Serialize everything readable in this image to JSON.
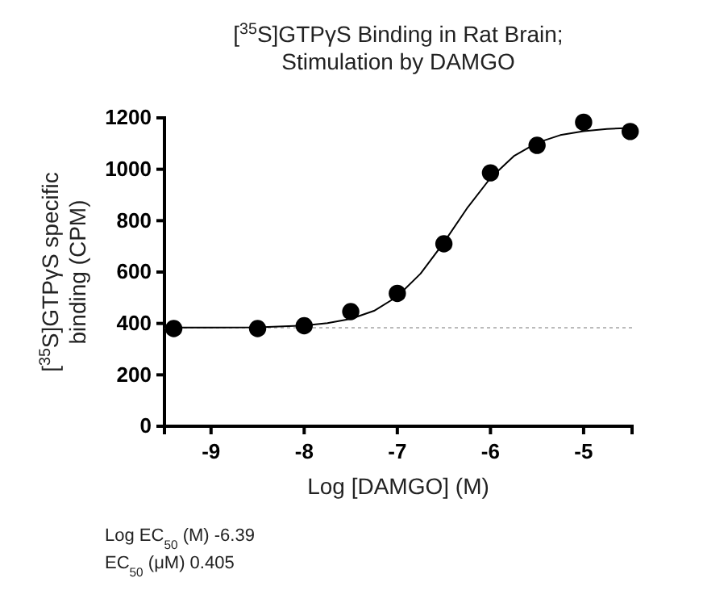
{
  "chart_data": {
    "type": "scatter",
    "title": "[$^{35}$S]GTPγS Binding in Rat Brain;\nStimulation by DAMGO",
    "xlabel": "Log [DAMGO] (M)",
    "ylabel": "[$^{35}$S]GTPγS specific\nbinding (CPM)",
    "xlim": [
      -9.5,
      -4.48
    ],
    "xticks": [
      -9,
      -8,
      -7,
      -6,
      -5
    ],
    "ylim": [
      0,
      1200
    ],
    "yticks": [
      0,
      200,
      400,
      600,
      800,
      1000,
      1200
    ],
    "grid": false,
    "marker": "circle",
    "series": [
      {
        "type": "line",
        "color": "#000000",
        "marker": "none",
        "line_style": "solid",
        "x": [
          -9.5,
          -9,
          -8.5,
          -8,
          -7.75,
          -7.5,
          -7.25,
          -7,
          -6.75,
          -6.5,
          -6.25,
          -6,
          -5.75,
          -5.5,
          -5.25,
          -5,
          -4.75,
          -4.5
        ],
        "values": [
          384,
          384,
          385,
          392,
          401,
          418,
          449,
          505,
          594,
          715,
          849,
          966,
          1051,
          1103,
          1133,
          1148,
          1157,
          1161
        ]
      },
      {
        "color": "#000000",
        "x": [
          -9.4,
          -8.5,
          -8,
          -7.5,
          -7,
          -6.5,
          -6,
          -5.5,
          -5,
          -4.5
        ],
        "values": [
          380,
          380,
          391,
          446,
          517,
          710,
          986,
          1093,
          1183,
          1147
        ]
      }
    ],
    "ref_lines": [
      {
        "axis": "y",
        "value": 383,
        "color": "#bbbbbb",
        "line_style": "dotted"
      }
    ],
    "annotations": [
      "Log EC$_{50}$ (M) -6.39",
      "EC$_{50}$ (μM) 0.405"
    ]
  }
}
